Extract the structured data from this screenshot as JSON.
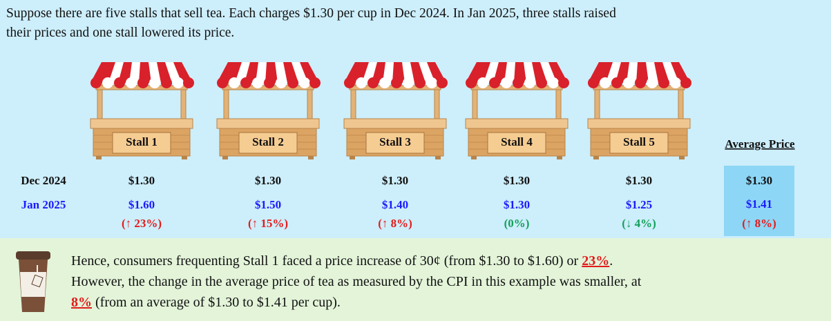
{
  "intro": [
    "Suppose there are five stalls that sell tea. Each charges $1.30 per cup in Dec 2024. In Jan 2025, three stalls raised",
    "their prices and one stall lowered its price."
  ],
  "rows": [
    "Dec 2024",
    "Jan 2025"
  ],
  "stalls": [
    {
      "name": "Stall 1",
      "dec": "$1.30",
      "jan": "$1.60",
      "change": "(↑ 23%)",
      "change_color": "#e31b1b"
    },
    {
      "name": "Stall 2",
      "dec": "$1.30",
      "jan": "$1.50",
      "change": "(↑ 15%)",
      "change_color": "#e31b1b"
    },
    {
      "name": "Stall 3",
      "dec": "$1.30",
      "jan": "$1.40",
      "change": "(↑ 8%)",
      "change_color": "#e31b1b"
    },
    {
      "name": "Stall 4",
      "dec": "$1.30",
      "jan": "$1.30",
      "change": "(0%)",
      "change_color": "#12a05a"
    },
    {
      "name": "Stall 5",
      "dec": "$1.30",
      "jan": "$1.25",
      "change": "(↓ 4%)",
      "change_color": "#12a05a"
    }
  ],
  "average": {
    "title": "Average Price",
    "dec": "$1.30",
    "jan": "$1.41",
    "change": "(↑ 8%)",
    "change_color": "#e31b1b"
  },
  "conclusion": {
    "text_1": "Hence, consumers frequenting Stall 1 faced a price increase of 30¢ (from $1.30 to $1.60) or ",
    "highlight_1": "23%",
    "text_2": ".",
    "line_2": "However, the change in the average price of tea as measured by the CPI in this example was smaller, at",
    "highlight_2": "8%",
    "text_3": " (from an average of $1.30 to $1.41 per cup)."
  }
}
